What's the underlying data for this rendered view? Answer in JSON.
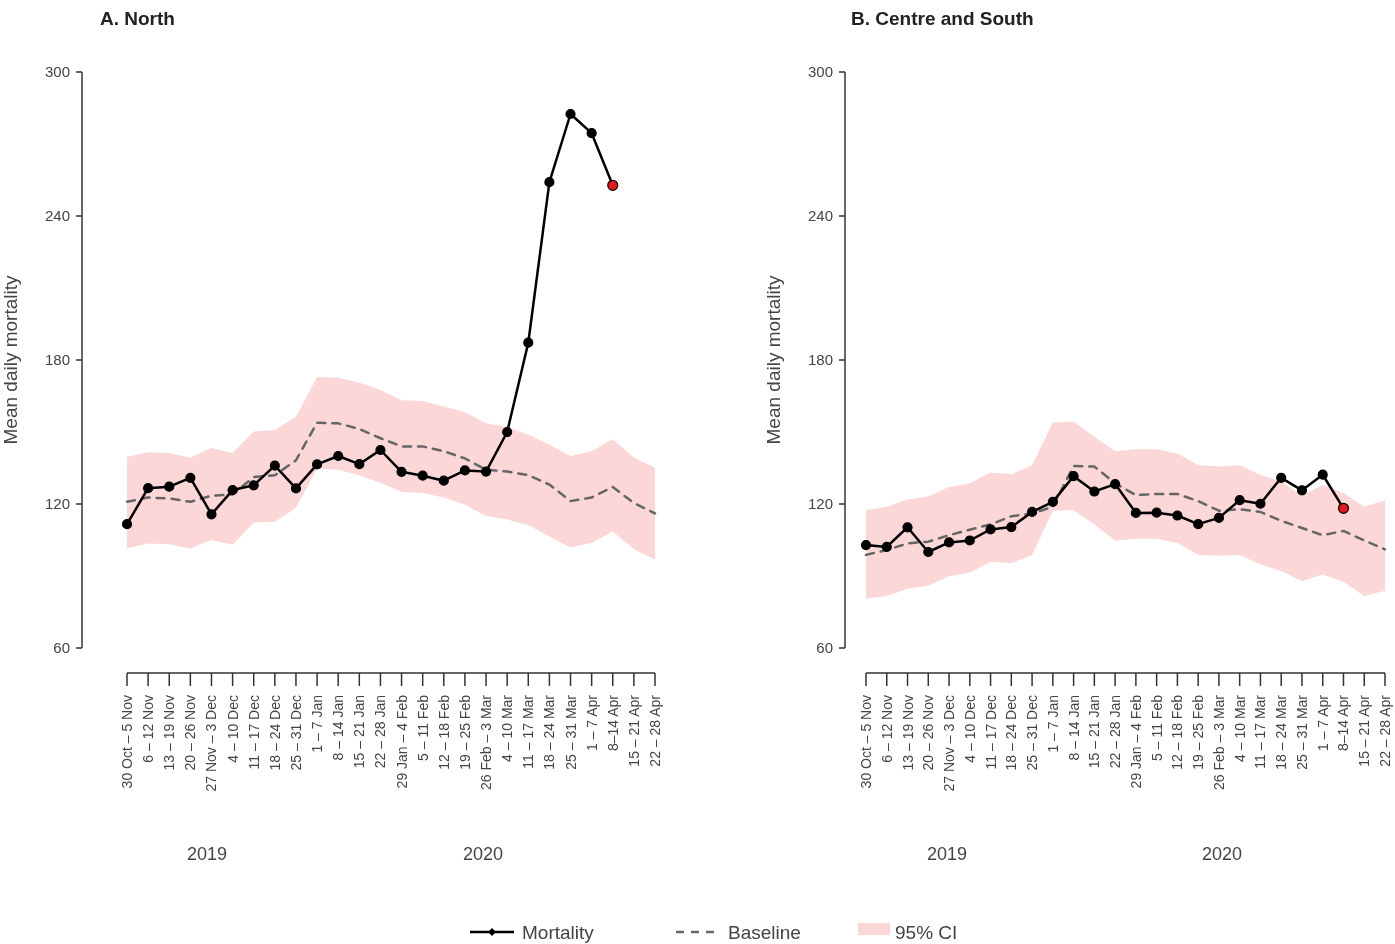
{
  "chart_data": [
    {
      "type": "line",
      "title": "A. North",
      "ylabel": "Mean daily mortality",
      "ylim": [
        60,
        300
      ],
      "yticks": [
        60,
        120,
        180,
        240,
        300
      ],
      "legend": "bottom",
      "marker": "circle",
      "categories": [
        "30 Oct – 5 Nov",
        "6 – 12 Nov",
        "13 – 19 Nov",
        "20 – 26 Nov",
        "27 Nov – 3 Dec",
        "4 – 10 Dec",
        "11 – 17 Dec",
        "18 – 24 Dec",
        "25 – 31 Dec",
        "1 – 7 Jan",
        "8 – 14 Jan",
        "15 – 21 Jan",
        "22 – 28 Jan",
        "29 Jan – 4 Feb",
        "5 – 11 Feb",
        "12 – 18 Feb",
        "19 – 25 Feb",
        "26 Feb – 3 Mar",
        "4 – 10 Mar",
        "11 – 17 Mar",
        "18 – 24 Mar",
        "25 – 31 Mar",
        "1 – 7 Apr",
        "8–14 Apr",
        "15 – 21 Apr",
        "22 – 28 Apr"
      ],
      "annotations": [
        "2019",
        "2020"
      ],
      "series": [
        {
          "name": "95% CI",
          "type": "area",
          "color": "#fbd7d8",
          "values": [
            null,
            null,
            null,
            null,
            null,
            null,
            null,
            null,
            null,
            null,
            null,
            null,
            null,
            null,
            null,
            null,
            null,
            null,
            null,
            null,
            null,
            null,
            null,
            null,
            null,
            null
          ],
          "lower": [
            101.6,
            103.5,
            103.2,
            101.5,
            105.0,
            103.0,
            112.3,
            112.6,
            118.4,
            134.8,
            134.3,
            132.0,
            128.9,
            125.1,
            124.6,
            122.7,
            119.7,
            115.0,
            113.5,
            111.2,
            106.5,
            101.9,
            103.9,
            108.5,
            101.1,
            96.8
          ],
          "upper": [
            139.7,
            141.6,
            141.3,
            139.4,
            143.3,
            141.3,
            150.2,
            150.8,
            156.4,
            172.9,
            172.6,
            170.6,
            167.5,
            163.2,
            162.9,
            160.6,
            158.2,
            153.6,
            152.1,
            149.0,
            144.7,
            140.0,
            142.0,
            147.0,
            139.4,
            135.1
          ]
        },
        {
          "name": "Baseline",
          "color": "#666666",
          "line_style": "dashed",
          "marker": "none",
          "values": [
            120.9,
            122.7,
            122.3,
            120.9,
            123.5,
            124.0,
            131.2,
            132.0,
            138.2,
            153.9,
            153.6,
            151.3,
            147.4,
            144.0,
            144.0,
            142.0,
            139.0,
            134.3,
            133.5,
            132.0,
            128.1,
            121.2,
            122.7,
            127.1,
            120.4,
            116.1
          ]
        },
        {
          "name": "Mortality",
          "color": "#000000",
          "values": [
            111.6,
            126.6,
            127.2,
            130.9,
            115.7,
            125.8,
            127.8,
            136.0,
            126.5,
            136.5,
            140.0,
            136.6,
            142.5,
            133.4,
            131.8,
            129.7,
            134.0,
            133.5,
            150.0,
            187.2,
            254.1,
            282.5,
            274.5,
            252.8,
            null,
            null
          ],
          "colors": [
            "#000000",
            "#000000",
            "#000000",
            "#000000",
            "#000000",
            "#000000",
            "#000000",
            "#000000",
            "#000000",
            "#000000",
            "#000000",
            "#000000",
            "#000000",
            "#000000",
            "#000000",
            "#000000",
            "#000000",
            "#000000",
            "#000000",
            "#000000",
            "#000000",
            "#000000",
            "#000000",
            "#e41a1c",
            null,
            null
          ]
        }
      ]
    },
    {
      "type": "line",
      "title": "B. Centre and South",
      "ylabel": "Mean daily mortality",
      "ylim": [
        60,
        300
      ],
      "yticks": [
        60,
        120,
        180,
        240,
        300
      ],
      "marker": "circle",
      "categories": [
        "30 Oct – 5 Nov",
        "6 – 12 Nov",
        "13 – 19 Nov",
        "20 – 26 Nov",
        "27 Nov – 3 Dec",
        "4 – 10 Dec",
        "11 – 17 Dec",
        "18 – 24 Dec",
        "25 – 31 Dec",
        "1 – 7 Jan",
        "8 – 14 Jan",
        "15 – 21 Jan",
        "22 – 28 Jan",
        "29 Jan – 4 Feb",
        "5 – 11 Feb",
        "12 – 18 Feb",
        "19 – 25 Feb",
        "26 Feb – 3 Mar",
        "4 – 10 Mar",
        "11 – 17 Mar",
        "18 – 24 Mar",
        "25 – 31 Mar",
        "1 – 7 Apr",
        "8–14 Apr",
        "15 – 21 Apr",
        "22 – 28 Apr"
      ],
      "annotations": [
        "2019",
        "2020"
      ],
      "series": [
        {
          "type": "area",
          "color": "#fbd7d8",
          "values": [
            null,
            null,
            null,
            null,
            null,
            null,
            null,
            null,
            null,
            null,
            null,
            null,
            null,
            null,
            null,
            null,
            null,
            null,
            null,
            null,
            null,
            null,
            null,
            null,
            null,
            null
          ],
          "lower": [
            80.5,
            81.7,
            84.7,
            85.9,
            89.9,
            91.4,
            95.9,
            95.4,
            98.8,
            117.2,
            117.5,
            111.5,
            104.8,
            105.5,
            105.5,
            103.8,
            98.8,
            98.4,
            98.8,
            94.8,
            92.1,
            87.9,
            90.6,
            87.6,
            81.7,
            83.9
          ],
          "upper": [
            117.5,
            118.9,
            121.9,
            123.1,
            127.1,
            128.6,
            133.1,
            132.4,
            136.1,
            154.0,
            154.4,
            148.0,
            142.0,
            142.8,
            142.8,
            141.0,
            136.1,
            135.6,
            136.1,
            132.1,
            129.4,
            123.4,
            127.9,
            124.6,
            118.9,
            121.6
          ]
        },
        {
          "color": "#666666",
          "line_style": "dashed",
          "marker": "none",
          "values": [
            98.8,
            100.8,
            103.6,
            104.3,
            107.0,
            109.3,
            111.5,
            114.9,
            116.0,
            118.9,
            135.8,
            135.6,
            128.6,
            123.7,
            124.2,
            124.2,
            121.2,
            117.2,
            117.8,
            116.7,
            113.0,
            110.0,
            107.0,
            108.8,
            104.8,
            101.1
          ]
        },
        {
          "color": "#000000",
          "values": [
            102.9,
            102.1,
            110.3,
            100.0,
            104.0,
            104.8,
            109.4,
            110.4,
            116.7,
            120.9,
            131.6,
            125.2,
            128.3,
            116.3,
            116.4,
            115.2,
            111.6,
            114.2,
            121.6,
            120.1,
            130.9,
            125.7,
            132.2,
            118.2,
            null,
            null
          ],
          "colors": [
            "#000000",
            "#000000",
            "#000000",
            "#000000",
            "#000000",
            "#000000",
            "#000000",
            "#000000",
            "#000000",
            "#000000",
            "#000000",
            "#000000",
            "#000000",
            "#000000",
            "#000000",
            "#000000",
            "#000000",
            "#000000",
            "#000000",
            "#000000",
            "#000000",
            "#000000",
            "#000000",
            "#e41a1c",
            null,
            null
          ]
        }
      ]
    }
  ]
}
